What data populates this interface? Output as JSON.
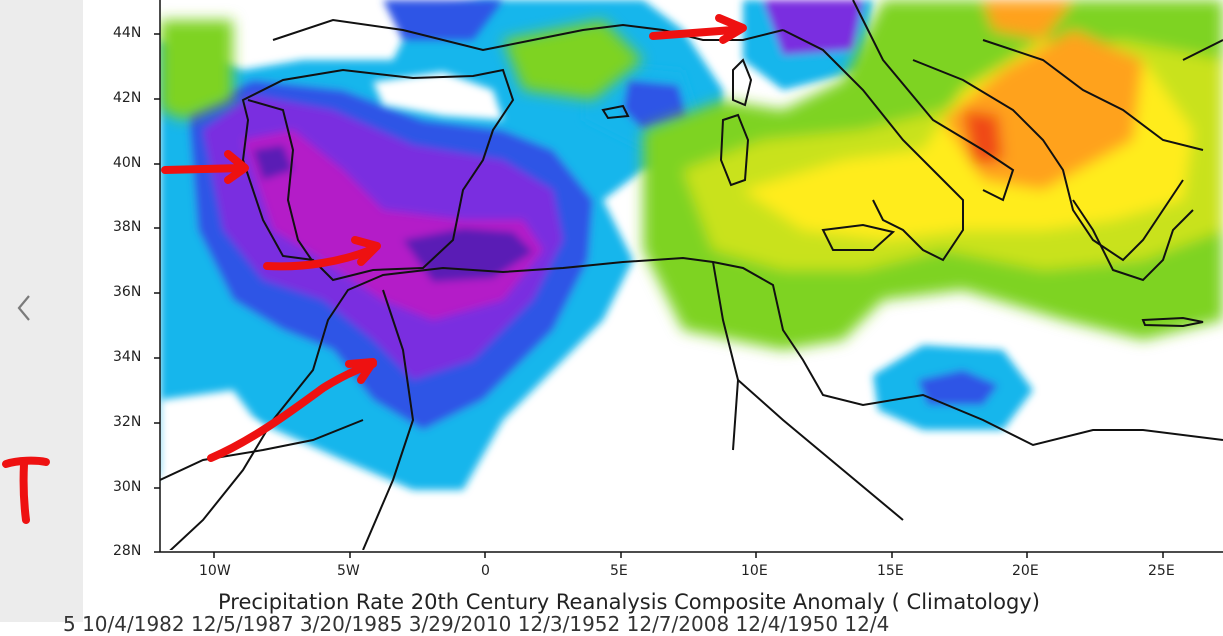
{
  "map": {
    "caption": "Precipitation Rate 20th Century Reanalysis Composite Anomaly ( Climatology)",
    "dates_line": "5 10/4/1982 12/5/1987 3/20/1985 3/29/2010 12/3/1952 12/7/2008 12/4/1950 12/4",
    "latitude_labels": [
      "44N",
      "42N",
      "40N",
      "38N",
      "36N",
      "34N",
      "32N",
      "30N",
      "28N"
    ],
    "longitude_labels": [
      "10W",
      "5W",
      "0",
      "5E",
      "10E",
      "15E",
      "20E",
      "25E"
    ],
    "colors": {
      "deep_purple": "#5a1fb5",
      "magenta": "#b41ec8",
      "violet": "#7a2de0",
      "blue": "#2f55e6",
      "light_blue": "#15b6ec",
      "green": "#7ed321",
      "yellow_green": "#c9e21b",
      "yellow": "#ffec1e",
      "orange": "#ffa21a",
      "red": "#f04a16",
      "annotation_red": "#ee1111",
      "coastline": "#111111"
    }
  },
  "ui": {
    "back_icon": "chevron-left-icon"
  }
}
